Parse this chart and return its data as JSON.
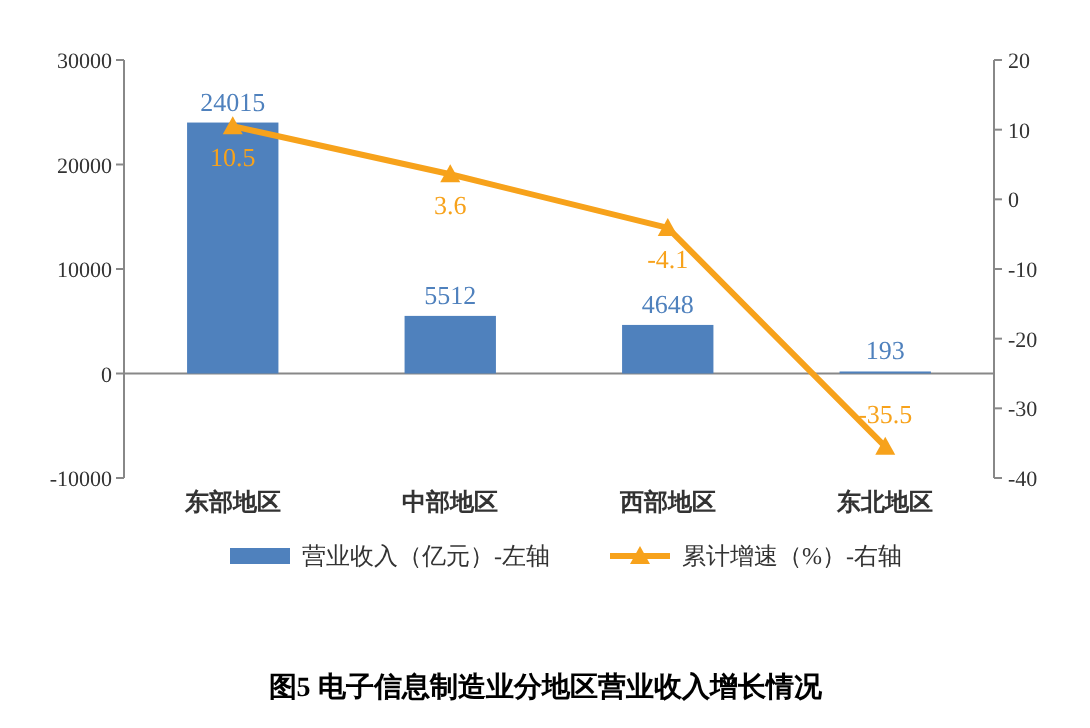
{
  "chart_data": {
    "type": "bar",
    "title": "图5 电子信息制造业分地区营业收入增长情况",
    "categories": [
      "东部地区",
      "中部地区",
      "西部地区",
      "东北地区"
    ],
    "series": [
      {
        "name": "营业收入（亿元）-左轴",
        "color": "#4f81bd",
        "values": [
          24015,
          5512,
          4648,
          193
        ]
      },
      {
        "name": "累计增速（%）-右轴",
        "type": "line",
        "axis": "y2",
        "color": "#f7a21b",
        "marker": "triangle",
        "values": [
          10.5,
          3.6,
          -4.1,
          -35.5
        ]
      }
    ],
    "ylim": [
      -10000,
      30000
    ],
    "yticks": [
      -10000,
      0,
      10000,
      20000,
      30000
    ],
    "y2lim": [
      -40,
      20
    ],
    "y2ticks": [
      -40,
      -30,
      -20,
      -10,
      0,
      10,
      20
    ],
    "data_labels": true,
    "legend": "bottom"
  }
}
